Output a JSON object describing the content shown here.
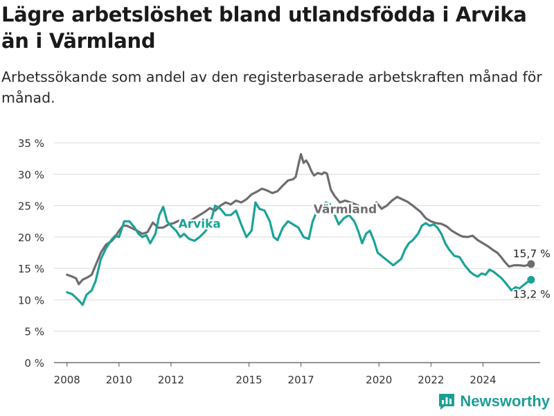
{
  "header": {
    "title": "Lägre arbetslöshet bland utlandsfödda i Arvika än i Värmland",
    "subtitle": "Arbetssökande som andel av den registerbaserade arbetskraften månad för månad."
  },
  "brand": {
    "name": "Newsworthy",
    "icon": "newsworthy-logo-icon",
    "color": "#1b9e95"
  },
  "chart_data": {
    "type": "line",
    "title": "Lägre arbetslöshet bland utlandsfödda i Arvika än i Värmland",
    "subtitle": "Arbetssökande som andel av den registerbaserade arbetskraften månad för månad.",
    "xlabel": "",
    "ylabel": "",
    "xlim": [
      2007.5,
      2026.2
    ],
    "ylim": [
      0,
      35
    ],
    "x_ticks": [
      2008,
      2010,
      2012,
      2015,
      2017,
      2020,
      2022,
      2024
    ],
    "x_tick_labels": [
      "2008",
      "2010",
      "2012",
      "2015",
      "2017",
      "2020",
      "2022",
      "2024"
    ],
    "y_ticks": [
      0,
      5,
      10,
      15,
      20,
      25,
      30,
      35
    ],
    "y_tick_labels": [
      "0 %",
      "5 %",
      "10 %",
      "15 %",
      "20 %",
      "25 %",
      "30 %",
      "35 %"
    ],
    "grid": true,
    "legend": "inline labels",
    "series": [
      {
        "name": "Värmland",
        "color": "#6e6c70",
        "label_at": [
          2018.7,
          23.8
        ],
        "end_label": "15,7 %",
        "points": [
          [
            2008.0,
            14.0
          ],
          [
            2008.2,
            13.7
          ],
          [
            2008.35,
            13.4
          ],
          [
            2008.45,
            12.5
          ],
          [
            2008.6,
            13.2
          ],
          [
            2008.8,
            13.6
          ],
          [
            2008.95,
            14.0
          ],
          [
            2009.1,
            15.5
          ],
          [
            2009.3,
            17.5
          ],
          [
            2009.5,
            18.8
          ],
          [
            2009.7,
            19.3
          ],
          [
            2009.85,
            20.0
          ],
          [
            2010.0,
            21.0
          ],
          [
            2010.15,
            21.8
          ],
          [
            2010.3,
            21.8
          ],
          [
            2010.5,
            21.4
          ],
          [
            2010.7,
            21.0
          ],
          [
            2010.9,
            20.5
          ],
          [
            2011.1,
            20.8
          ],
          [
            2011.3,
            22.3
          ],
          [
            2011.5,
            21.5
          ],
          [
            2011.7,
            21.5
          ],
          [
            2011.9,
            22.0
          ],
          [
            2012.1,
            22.2
          ],
          [
            2012.3,
            22.6
          ],
          [
            2012.5,
            22.2
          ],
          [
            2012.7,
            22.5
          ],
          [
            2012.9,
            23.0
          ],
          [
            2013.1,
            23.5
          ],
          [
            2013.3,
            24.0
          ],
          [
            2013.5,
            24.6
          ],
          [
            2013.7,
            24.2
          ],
          [
            2013.9,
            25.0
          ],
          [
            2014.1,
            25.5
          ],
          [
            2014.3,
            25.2
          ],
          [
            2014.5,
            25.8
          ],
          [
            2014.7,
            25.5
          ],
          [
            2014.9,
            26.0
          ],
          [
            2015.1,
            26.8
          ],
          [
            2015.3,
            27.2
          ],
          [
            2015.5,
            27.7
          ],
          [
            2015.7,
            27.4
          ],
          [
            2015.9,
            27.0
          ],
          [
            2016.1,
            27.3
          ],
          [
            2016.3,
            28.2
          ],
          [
            2016.5,
            29.0
          ],
          [
            2016.7,
            29.2
          ],
          [
            2016.8,
            29.6
          ],
          [
            2016.9,
            31.5
          ],
          [
            2017.0,
            33.2
          ],
          [
            2017.1,
            31.8
          ],
          [
            2017.2,
            32.2
          ],
          [
            2017.3,
            31.5
          ],
          [
            2017.4,
            30.5
          ],
          [
            2017.5,
            29.8
          ],
          [
            2017.65,
            30.2
          ],
          [
            2017.8,
            30.0
          ],
          [
            2017.9,
            30.3
          ],
          [
            2018.0,
            30.1
          ],
          [
            2018.15,
            27.5
          ],
          [
            2018.3,
            26.5
          ],
          [
            2018.5,
            25.5
          ],
          [
            2018.7,
            25.8
          ],
          [
            2018.9,
            25.5
          ],
          [
            2019.1,
            25.2
          ],
          [
            2019.3,
            24.8
          ],
          [
            2019.5,
            24.5
          ],
          [
            2019.7,
            24.3
          ],
          [
            2019.9,
            25.5
          ],
          [
            2020.1,
            24.5
          ],
          [
            2020.3,
            25.0
          ],
          [
            2020.5,
            25.8
          ],
          [
            2020.7,
            26.4
          ],
          [
            2020.9,
            26.0
          ],
          [
            2021.1,
            25.6
          ],
          [
            2021.3,
            25.0
          ],
          [
            2021.45,
            24.5
          ],
          [
            2021.6,
            24.0
          ],
          [
            2021.8,
            23.0
          ],
          [
            2022.0,
            22.5
          ],
          [
            2022.2,
            22.2
          ],
          [
            2022.4,
            22.1
          ],
          [
            2022.6,
            21.7
          ],
          [
            2022.8,
            21.0
          ],
          [
            2023.0,
            20.5
          ],
          [
            2023.2,
            20.1
          ],
          [
            2023.4,
            20.0
          ],
          [
            2023.6,
            20.2
          ],
          [
            2023.8,
            19.5
          ],
          [
            2024.0,
            19.0
          ],
          [
            2024.2,
            18.5
          ],
          [
            2024.4,
            17.9
          ],
          [
            2024.55,
            17.5
          ],
          [
            2024.7,
            16.8
          ],
          [
            2024.85,
            16.0
          ],
          [
            2025.0,
            15.3
          ],
          [
            2025.2,
            15.5
          ],
          [
            2025.4,
            15.5
          ],
          [
            2025.6,
            15.4
          ],
          [
            2025.85,
            15.7
          ]
        ]
      },
      {
        "name": "Arvika",
        "color": "#1aa297",
        "label_at": [
          2013.1,
          21.5
        ],
        "end_label": "13,2 %",
        "points": [
          [
            2008.0,
            11.2
          ],
          [
            2008.2,
            10.9
          ],
          [
            2008.35,
            10.3
          ],
          [
            2008.5,
            9.7
          ],
          [
            2008.6,
            9.2
          ],
          [
            2008.75,
            10.8
          ],
          [
            2008.95,
            11.5
          ],
          [
            2009.1,
            13.0
          ],
          [
            2009.3,
            16.5
          ],
          [
            2009.5,
            18.2
          ],
          [
            2009.7,
            19.5
          ],
          [
            2009.85,
            20.2
          ],
          [
            2010.0,
            20.0
          ],
          [
            2010.2,
            22.5
          ],
          [
            2010.4,
            22.5
          ],
          [
            2010.6,
            21.5
          ],
          [
            2010.75,
            20.5
          ],
          [
            2010.9,
            20.0
          ],
          [
            2011.05,
            20.3
          ],
          [
            2011.2,
            19.0
          ],
          [
            2011.4,
            20.5
          ],
          [
            2011.55,
            23.5
          ],
          [
            2011.7,
            24.8
          ],
          [
            2011.85,
            22.5
          ],
          [
            2012.0,
            21.8
          ],
          [
            2012.2,
            21.0
          ],
          [
            2012.35,
            20.0
          ],
          [
            2012.5,
            20.5
          ],
          [
            2012.7,
            19.7
          ],
          [
            2012.9,
            19.4
          ],
          [
            2013.1,
            20.0
          ],
          [
            2013.3,
            20.8
          ],
          [
            2013.5,
            22.0
          ],
          [
            2013.7,
            25.0
          ],
          [
            2013.9,
            24.5
          ],
          [
            2014.1,
            23.5
          ],
          [
            2014.3,
            23.5
          ],
          [
            2014.5,
            24.2
          ],
          [
            2014.7,
            22.0
          ],
          [
            2014.9,
            20.0
          ],
          [
            2015.1,
            21.0
          ],
          [
            2015.25,
            25.5
          ],
          [
            2015.4,
            24.5
          ],
          [
            2015.6,
            24.2
          ],
          [
            2015.8,
            22.5
          ],
          [
            2015.95,
            20.0
          ],
          [
            2016.1,
            19.5
          ],
          [
            2016.3,
            21.5
          ],
          [
            2016.5,
            22.5
          ],
          [
            2016.7,
            22.0
          ],
          [
            2016.9,
            21.5
          ],
          [
            2017.1,
            20.0
          ],
          [
            2017.3,
            19.7
          ],
          [
            2017.45,
            22.5
          ],
          [
            2017.6,
            24.0
          ],
          [
            2017.8,
            24.5
          ],
          [
            2017.95,
            25.5
          ],
          [
            2018.1,
            25.3
          ],
          [
            2018.25,
            24.0
          ],
          [
            2018.45,
            22.0
          ],
          [
            2018.65,
            23.0
          ],
          [
            2018.85,
            23.5
          ],
          [
            2019.05,
            22.5
          ],
          [
            2019.2,
            21.0
          ],
          [
            2019.35,
            19.0
          ],
          [
            2019.5,
            20.5
          ],
          [
            2019.65,
            21.0
          ],
          [
            2019.8,
            19.5
          ],
          [
            2019.95,
            17.5
          ],
          [
            2020.1,
            17.0
          ],
          [
            2020.25,
            16.5
          ],
          [
            2020.4,
            16.0
          ],
          [
            2020.55,
            15.5
          ],
          [
            2020.7,
            16.0
          ],
          [
            2020.85,
            16.5
          ],
          [
            2021.0,
            18.0
          ],
          [
            2021.15,
            19.0
          ],
          [
            2021.3,
            19.5
          ],
          [
            2021.5,
            20.5
          ],
          [
            2021.65,
            21.8
          ],
          [
            2021.8,
            22.2
          ],
          [
            2021.95,
            21.8
          ],
          [
            2022.1,
            22.0
          ],
          [
            2022.25,
            21.5
          ],
          [
            2022.4,
            20.5
          ],
          [
            2022.55,
            19.0
          ],
          [
            2022.7,
            18.0
          ],
          [
            2022.9,
            17.0
          ],
          [
            2023.1,
            16.8
          ],
          [
            2023.3,
            15.5
          ],
          [
            2023.5,
            14.5
          ],
          [
            2023.65,
            14.0
          ],
          [
            2023.8,
            13.7
          ],
          [
            2023.95,
            14.2
          ],
          [
            2024.1,
            14.0
          ],
          [
            2024.25,
            14.8
          ],
          [
            2024.4,
            14.5
          ],
          [
            2024.55,
            14.0
          ],
          [
            2024.7,
            13.5
          ],
          [
            2024.85,
            12.8
          ],
          [
            2025.0,
            12.0
          ],
          [
            2025.1,
            11.5
          ],
          [
            2025.25,
            12.0
          ],
          [
            2025.4,
            11.8
          ],
          [
            2025.55,
            12.3
          ],
          [
            2025.7,
            12.8
          ],
          [
            2025.85,
            13.2
          ]
        ]
      }
    ]
  }
}
